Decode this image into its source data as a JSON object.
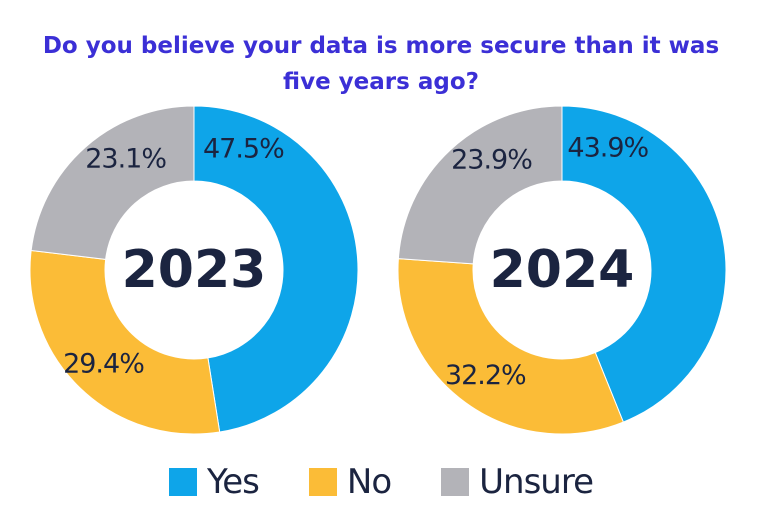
{
  "title_line1": "Do you believe your data is more secure than it was",
  "title_line2": "five years ago?",
  "colors": {
    "Yes": "#0ea5e9",
    "No": "#fbbc37",
    "Unsure": "#b3b3b8",
    "title": "#3b2fd6",
    "text": "#1b2440"
  },
  "chart_data": [
    {
      "type": "pie",
      "center_label": "2023",
      "categories": [
        "Yes",
        "No",
        "Unsure"
      ],
      "values": [
        47.5,
        29.4,
        23.1
      ],
      "value_labels": [
        "47.5%",
        "29.4%",
        "23.1%"
      ]
    },
    {
      "type": "pie",
      "center_label": "2024",
      "categories": [
        "Yes",
        "No",
        "Unsure"
      ],
      "values": [
        43.9,
        32.2,
        23.9
      ],
      "value_labels": [
        "43.9%",
        "32.2%",
        "23.9%"
      ]
    }
  ],
  "legend": [
    {
      "label": "Yes"
    },
    {
      "label": "No"
    },
    {
      "label": "Unsure"
    }
  ]
}
